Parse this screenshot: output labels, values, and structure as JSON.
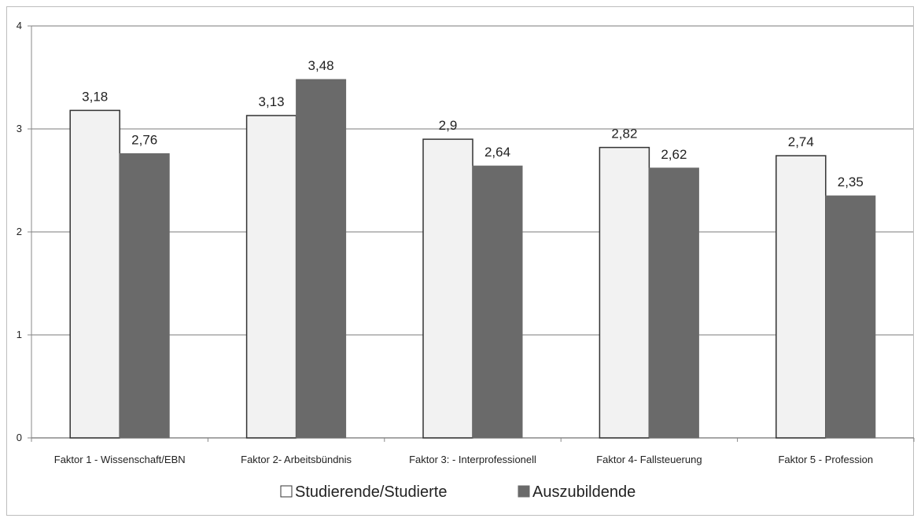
{
  "chart_data": {
    "type": "bar",
    "categories": [
      "Faktor 1 - Wissenschaft/EBN",
      "Faktor 2- Arbeitsbündnis",
      "Faktor 3: - Interprofessionell",
      "Faktor 4- Fallsteuerung",
      "Faktor 5 - Profession"
    ],
    "series": [
      {
        "name": "Studierende/Studierte",
        "values": [
          3.18,
          3.13,
          2.9,
          2.82,
          2.74
        ],
        "labels": [
          "3,18",
          "3,13",
          "2,9",
          "2,82",
          "2,74"
        ],
        "color": "#f2f2f2",
        "stroke": "#333333"
      },
      {
        "name": "Auszubildende",
        "values": [
          2.76,
          3.48,
          2.64,
          2.62,
          2.35
        ],
        "labels": [
          "2,76",
          "3,48",
          "2,64",
          "2,62",
          "2,35"
        ],
        "color": "#6a6a6a",
        "stroke": "#6a6a6a"
      }
    ],
    "yticks": [
      0,
      1,
      2,
      3,
      4
    ],
    "ylim": [
      0,
      4
    ],
    "grid": true,
    "legend": "bottom"
  }
}
